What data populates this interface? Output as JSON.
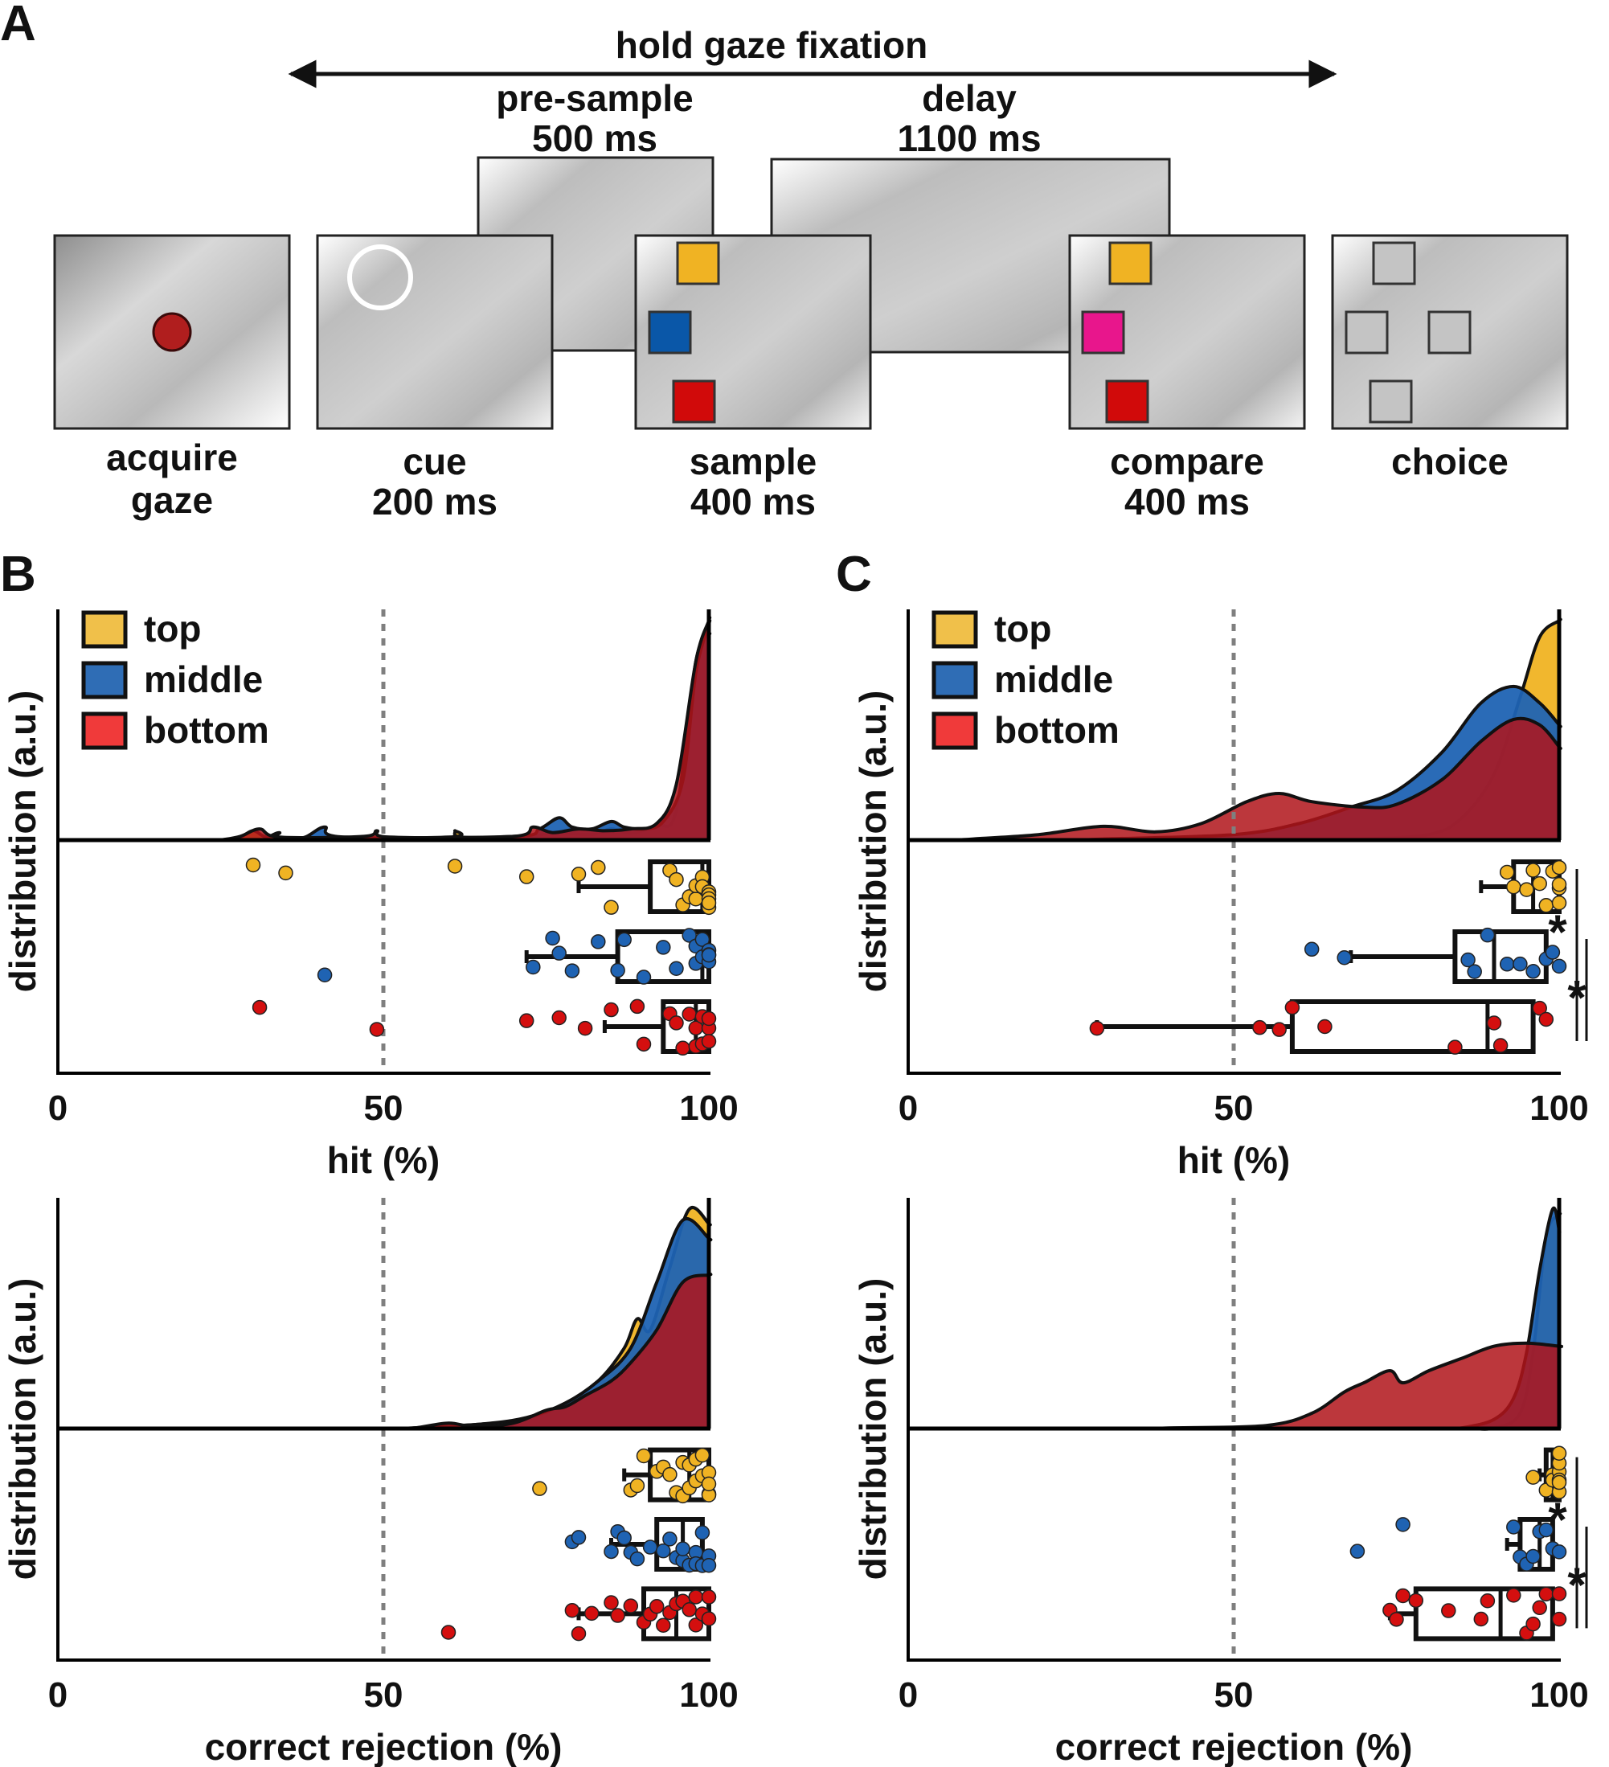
{
  "panel_a": {
    "letter": "A",
    "hold_label": "hold gaze fixation",
    "presample_label": [
      "pre-sample",
      "500 ms"
    ],
    "delay_label": [
      "delay",
      "1100 ms"
    ],
    "screens": [
      {
        "id": "acquire",
        "label": [
          "acquire",
          "gaze"
        ]
      },
      {
        "id": "cue",
        "label": [
          "cue",
          "200 ms"
        ]
      },
      {
        "id": "sample",
        "label": [
          "sample",
          "400 ms"
        ]
      },
      {
        "id": "compare",
        "label": [
          "compare",
          "400 ms"
        ]
      },
      {
        "id": "choice",
        "label": [
          "choice"
        ]
      }
    ],
    "colors": {
      "red_dot": "#b01e1e",
      "yellow": "#f0b323",
      "blue": "#0a57a8",
      "red": "#d10a0a",
      "magenta": "#e8168c"
    }
  },
  "legend": [
    {
      "name": "top",
      "color": "#f0c04a"
    },
    {
      "name": "middle",
      "color": "#2f6db5"
    },
    {
      "name": "bottom",
      "color": "#f03a3a"
    }
  ],
  "colors": {
    "top": "#f0b323",
    "middle": "#1f63b3",
    "bottom": "#d40f0f",
    "dist_bottom": "#b0141a",
    "dashed": "#7f7f7f",
    "axis": "#000000"
  },
  "chart_data": [
    {
      "panel": "B",
      "type": "raincloud",
      "xlabel": "hit (%)",
      "ylabel": "distribution (a.u.)",
      "xlim": [
        0,
        100
      ],
      "xticks": [
        0,
        50,
        100
      ],
      "reference_line": 50,
      "show_panel_letter": true,
      "show_legend": true,
      "series": [
        {
          "name": "top",
          "density": [
            [
              28,
              0.08
            ],
            [
              30,
              0.25
            ],
            [
              32,
              0.08
            ],
            [
              34,
              0.2
            ],
            [
              36,
              0.05
            ],
            [
              60,
              0.08
            ],
            [
              61,
              0.25
            ],
            [
              62,
              0.08
            ],
            [
              72,
              0.08
            ],
            [
              76,
              0.2
            ],
            [
              82,
              0.15
            ],
            [
              85,
              0.3
            ],
            [
              88,
              0.18
            ],
            [
              92,
              0.4
            ],
            [
              95,
              0.8
            ],
            [
              98,
              4.8
            ],
            [
              100,
              5.5
            ]
          ],
          "points": [
            30,
            35,
            61,
            72,
            80,
            83,
            85,
            94,
            95,
            96,
            97,
            98,
            98,
            99,
            99,
            100,
            100,
            100,
            100,
            100
          ],
          "box": {
            "q1": 91,
            "median": 99,
            "q3": 100,
            "whisker_low": 80,
            "whisker_high": 100
          }
        },
        {
          "name": "middle",
          "density": [
            [
              38,
              0.08
            ],
            [
              41,
              0.35
            ],
            [
              44,
              0.08
            ],
            [
              70,
              0.1
            ],
            [
              74,
              0.3
            ],
            [
              77,
              0.6
            ],
            [
              79,
              0.35
            ],
            [
              82,
              0.3
            ],
            [
              85,
              0.5
            ],
            [
              87,
              0.35
            ],
            [
              90,
              0.3
            ],
            [
              93,
              0.5
            ],
            [
              96,
              1.6
            ],
            [
              98,
              4.5
            ],
            [
              100,
              5.8
            ]
          ],
          "points": [
            41,
            73,
            76,
            77,
            79,
            83,
            86,
            87,
            90,
            93,
            95,
            97,
            98,
            98,
            99,
            99,
            100,
            100,
            100,
            100
          ],
          "box": {
            "q1": 86,
            "median": 99,
            "q3": 100,
            "whisker_low": 72,
            "whisker_high": 100
          }
        },
        {
          "name": "bottom",
          "density": [
            [
              28,
              0.1
            ],
            [
              31,
              0.3
            ],
            [
              34,
              0.08
            ],
            [
              47,
              0.1
            ],
            [
              49,
              0.25
            ],
            [
              51,
              0.08
            ],
            [
              70,
              0.1
            ],
            [
              73,
              0.35
            ],
            [
              76,
              0.2
            ],
            [
              80,
              0.3
            ],
            [
              84,
              0.25
            ],
            [
              88,
              0.3
            ],
            [
              92,
              0.45
            ],
            [
              95,
              1.5
            ],
            [
              98,
              4.8
            ],
            [
              100,
              5.9
            ]
          ],
          "points": [
            31,
            49,
            72,
            77,
            81,
            85,
            89,
            90,
            94,
            95,
            96,
            97,
            98,
            98,
            99,
            99,
            100,
            100,
            100
          ],
          "box": {
            "q1": 93,
            "median": 98,
            "q3": 100,
            "whisker_low": 84,
            "whisker_high": 100
          }
        }
      ],
      "significance": []
    },
    {
      "panel": "C",
      "type": "raincloud",
      "xlabel": "hit (%)",
      "ylabel": "distribution (a.u.)",
      "xlim": [
        0,
        100
      ],
      "xticks": [
        0,
        50,
        100
      ],
      "reference_line": 50,
      "show_panel_letter": true,
      "show_legend": true,
      "series": [
        {
          "name": "top",
          "density": [
            [
              70,
              0.02
            ],
            [
              80,
              0.1
            ],
            [
              85,
              0.4
            ],
            [
              90,
              1.2
            ],
            [
              94,
              2.6
            ],
            [
              97,
              3.7
            ],
            [
              100,
              4.0
            ]
          ],
          "points": [
            92,
            93,
            95,
            96,
            97,
            98,
            99,
            100,
            100,
            100,
            100
          ],
          "box": {
            "q1": 93,
            "median": 96,
            "q3": 100,
            "whisker_low": 88,
            "whisker_high": 100
          }
        },
        {
          "name": "middle",
          "density": [
            [
              30,
              0.02
            ],
            [
              50,
              0.1
            ],
            [
              60,
              0.3
            ],
            [
              68,
              0.6
            ],
            [
              75,
              0.9
            ],
            [
              82,
              1.6
            ],
            [
              88,
              2.5
            ],
            [
              93,
              2.8
            ],
            [
              97,
              2.5
            ],
            [
              100,
              2.1
            ]
          ],
          "points": [
            62,
            67,
            86,
            87,
            89,
            92,
            94,
            96,
            98,
            99,
            100
          ],
          "box": {
            "q1": 84,
            "median": 90,
            "q3": 98,
            "whisker_low": 68,
            "whisker_high": 100
          }
        },
        {
          "name": "bottom",
          "density": [
            [
              10,
              0.02
            ],
            [
              20,
              0.1
            ],
            [
              30,
              0.25
            ],
            [
              38,
              0.15
            ],
            [
              45,
              0.3
            ],
            [
              52,
              0.7
            ],
            [
              57,
              0.85
            ],
            [
              62,
              0.7
            ],
            [
              70,
              0.6
            ],
            [
              75,
              0.65
            ],
            [
              82,
              1.1
            ],
            [
              88,
              1.8
            ],
            [
              93,
              2.2
            ],
            [
              97,
              2.1
            ],
            [
              100,
              1.7
            ]
          ],
          "points": [
            29,
            54,
            57,
            59,
            64,
            84,
            90,
            91,
            97,
            98
          ],
          "box": {
            "q1": 59,
            "median": 89,
            "q3": 96,
            "whisker_low": 29,
            "whisker_high": 98
          }
        }
      ],
      "significance": [
        {
          "from": "top",
          "to": "bottom",
          "label": "*"
        },
        {
          "from": "middle",
          "to": "bottom",
          "label": "*"
        }
      ]
    },
    {
      "panel": "",
      "type": "raincloud",
      "xlabel": "correct rejection (%)",
      "ylabel": "distribution (a.u.)",
      "xlim": [
        0,
        100
      ],
      "xticks": [
        0,
        50,
        100
      ],
      "reference_line": 50,
      "show_panel_letter": false,
      "show_legend": false,
      "series": [
        {
          "name": "top",
          "density": [
            [
              55,
              0.02
            ],
            [
              65,
              0.12
            ],
            [
              72,
              0.25
            ],
            [
              78,
              0.7
            ],
            [
              83,
              1.3
            ],
            [
              87,
              2.2
            ],
            [
              89,
              3.0
            ],
            [
              91,
              2.7
            ],
            [
              94,
              4.4
            ],
            [
              97,
              6.0
            ],
            [
              100,
              5.6
            ]
          ],
          "points": [
            74,
            88,
            89,
            90,
            92,
            93,
            94,
            95,
            96,
            96,
            97,
            97,
            98,
            98,
            99,
            99,
            100,
            100,
            100,
            100
          ],
          "box": {
            "q1": 91,
            "median": 97,
            "q3": 100,
            "whisker_low": 87,
            "whisker_high": 100
          }
        },
        {
          "name": "middle",
          "density": [
            [
              55,
              0.02
            ],
            [
              65,
              0.12
            ],
            [
              72,
              0.3
            ],
            [
              78,
              0.7
            ],
            [
              83,
              1.3
            ],
            [
              88,
              2.2
            ],
            [
              92,
              4.0
            ],
            [
              96,
              5.7
            ],
            [
              100,
              5.2
            ]
          ],
          "points": [
            79,
            80,
            85,
            86,
            87,
            88,
            89,
            91,
            93,
            94,
            95,
            96,
            96,
            97,
            98,
            98,
            99,
            99,
            100,
            100
          ],
          "box": {
            "q1": 92,
            "median": 96,
            "q3": 99,
            "whisker_low": 85,
            "whisker_high": 99
          }
        },
        {
          "name": "bottom",
          "density": [
            [
              55,
              0.02
            ],
            [
              60,
              0.15
            ],
            [
              64,
              0.05
            ],
            [
              70,
              0.15
            ],
            [
              75,
              0.5
            ],
            [
              78,
              0.6
            ],
            [
              81,
              0.9
            ],
            [
              85,
              1.3
            ],
            [
              88,
              1.8
            ],
            [
              92,
              2.7
            ],
            [
              96,
              4.0
            ],
            [
              100,
              4.2
            ]
          ],
          "points": [
            60,
            79,
            80,
            82,
            85,
            86,
            88,
            90,
            91,
            92,
            93,
            94,
            95,
            96,
            97,
            98,
            98,
            99,
            100,
            100
          ],
          "box": {
            "q1": 90,
            "median": 95,
            "q3": 100,
            "whisker_low": 80,
            "whisker_high": 100
          }
        }
      ],
      "significance": []
    },
    {
      "panel": "",
      "type": "raincloud",
      "xlabel": "correct rejection (%)",
      "ylabel": "distribution (a.u.)",
      "xlim": [
        0,
        100
      ],
      "xticks": [
        0,
        50,
        100
      ],
      "reference_line": 50,
      "show_panel_letter": false,
      "show_legend": false,
      "series": [
        {
          "name": "top",
          "density": [
            [
              90,
              0.02
            ],
            [
              94,
              0.5
            ],
            [
              96,
              2.5
            ],
            [
              98,
              6.3
            ],
            [
              100,
              7.0
            ]
          ],
          "points": [
            96,
            98,
            99,
            99,
            100,
            100,
            100,
            100,
            100,
            100
          ],
          "box": {
            "q1": 98,
            "median": 99,
            "q3": 100,
            "whisker_low": 97,
            "whisker_high": 100
          }
        },
        {
          "name": "middle",
          "density": [
            [
              85,
              0.02
            ],
            [
              90,
              0.3
            ],
            [
              93,
              1.0
            ],
            [
              95,
              2.5
            ],
            [
              97,
              5.2
            ],
            [
              99,
              7.2
            ],
            [
              100,
              6.5
            ]
          ],
          "points": [
            69,
            76,
            93,
            94,
            95,
            96,
            97,
            98,
            99,
            100
          ],
          "box": {
            "q1": 94,
            "median": 97,
            "q3": 99,
            "whisker_low": 92,
            "whisker_high": 99
          }
        },
        {
          "name": "bottom",
          "density": [
            [
              40,
              0.02
            ],
            [
              55,
              0.1
            ],
            [
              62,
              0.5
            ],
            [
              67,
              1.2
            ],
            [
              70,
              1.5
            ],
            [
              74,
              1.9
            ],
            [
              76,
              1.5
            ],
            [
              80,
              1.9
            ],
            [
              85,
              2.3
            ],
            [
              90,
              2.7
            ],
            [
              95,
              2.8
            ],
            [
              100,
              2.7
            ]
          ],
          "points": [
            74,
            75,
            76,
            78,
            83,
            88,
            89,
            93,
            95,
            96,
            97,
            98,
            100,
            100
          ],
          "box": {
            "q1": 78,
            "median": 91,
            "q3": 99,
            "whisker_low": 74,
            "whisker_high": 100
          }
        }
      ],
      "significance": [
        {
          "from": "top",
          "to": "bottom",
          "label": "*"
        },
        {
          "from": "middle",
          "to": "bottom",
          "label": "*"
        }
      ]
    }
  ]
}
